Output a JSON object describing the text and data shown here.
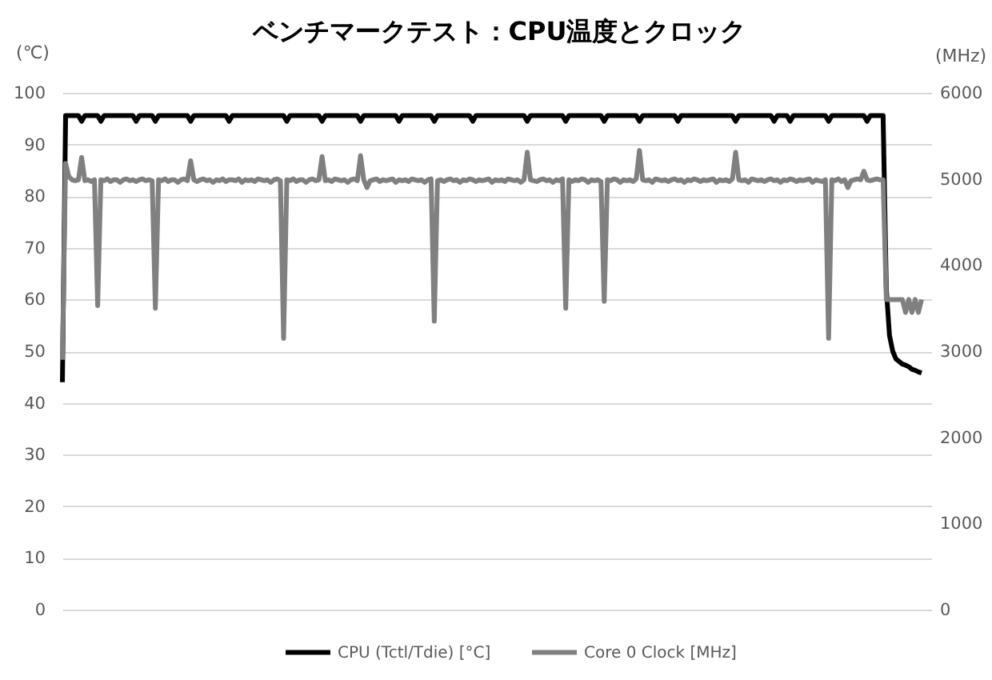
{
  "chart_data": {
    "type": "line",
    "title": "ベンチマークテスト：CPU温度とクロック",
    "ylabel": "(℃)",
    "y2label": "(MHz)",
    "categories": [
      null,
      null,
      null,
      null,
      null,
      null,
      null,
      null,
      null,
      null,
      null,
      null,
      null,
      null,
      null,
      null,
      null,
      null,
      null,
      null,
      null,
      null,
      null,
      null,
      null,
      null,
      null,
      null,
      null,
      null,
      null,
      null,
      null,
      null,
      null,
      null,
      null,
      null,
      null,
      null,
      null,
      null,
      null,
      null,
      null,
      null,
      null,
      null,
      null,
      null,
      null,
      null,
      null,
      null,
      null,
      null,
      null,
      null,
      null,
      null,
      null,
      null,
      null,
      null,
      null,
      null,
      null,
      null,
      null,
      null,
      null,
      null,
      null,
      null,
      null,
      null,
      null,
      null,
      null,
      null,
      null,
      null,
      null,
      null,
      null,
      null,
      null,
      null,
      null,
      null,
      null,
      null,
      null,
      null,
      null,
      null,
      null,
      null,
      null,
      null,
      null,
      null,
      null,
      null,
      null,
      null,
      null,
      null,
      null,
      null,
      null,
      null,
      null,
      null,
      null,
      null,
      null,
      null,
      null,
      null,
      null,
      null,
      null,
      null,
      null,
      null,
      null,
      null,
      null,
      null,
      null,
      null,
      null,
      null,
      null,
      null,
      null,
      null,
      null,
      null,
      null,
      null,
      null,
      null,
      null,
      null,
      null,
      null,
      null,
      null,
      null,
      null,
      null,
      null,
      null,
      null,
      null,
      null,
      null,
      null,
      null,
      null,
      null,
      null,
      null,
      null,
      null,
      null,
      null,
      null,
      null,
      null,
      null,
      null,
      null,
      null,
      null,
      null,
      null,
      null,
      null,
      null,
      null,
      null,
      null,
      null,
      null,
      null,
      null,
      null,
      null,
      null,
      null,
      null,
      null,
      null,
      null,
      null,
      null,
      null,
      null,
      null,
      null,
      null,
      null,
      null,
      null,
      null,
      null,
      null,
      null,
      null,
      null,
      null,
      null,
      null,
      null,
      null,
      null,
      null,
      null,
      null,
      null,
      null,
      null,
      null,
      null,
      null,
      null,
      null,
      null,
      null,
      null,
      null,
      null,
      null,
      null,
      null,
      null,
      null,
      null,
      null,
      null,
      null,
      null,
      null,
      null,
      null,
      null,
      null,
      null,
      null,
      null,
      null,
      null,
      null,
      null,
      null,
      null,
      null,
      null,
      null,
      null,
      null,
      null,
      null,
      null,
      null,
      null,
      null,
      null,
      null
    ],
    "series": [
      {
        "name": "CPU (Tctl/Tdie) [°C]",
        "color": "#000000",
        "values": [
          44,
          95.6,
          95.6,
          95.6,
          95.6,
          95.6,
          94.5,
          95.6,
          95.6,
          95.6,
          95.6,
          95.6,
          94.5,
          95.6,
          95.6,
          95.6,
          95.6,
          95.6,
          95.6,
          95.6,
          95.6,
          95.6,
          95.6,
          94.5,
          95.6,
          95.6,
          95.6,
          95.6,
          95.6,
          94.5,
          95.6,
          95.6,
          95.6,
          95.6,
          95.6,
          95.6,
          95.6,
          95.6,
          95.6,
          95.6,
          94.5,
          95.6,
          95.6,
          95.6,
          95.6,
          95.6,
          95.6,
          95.6,
          95.6,
          95.6,
          95.6,
          95.6,
          94.5,
          95.6,
          95.6,
          95.6,
          95.6,
          95.6,
          95.6,
          95.6,
          95.6,
          95.6,
          95.6,
          95.6,
          95.6,
          95.6,
          95.6,
          95.6,
          95.6,
          95.6,
          94.5,
          95.6,
          95.6,
          95.6,
          95.6,
          95.6,
          95.6,
          95.6,
          95.6,
          95.6,
          95.6,
          94.5,
          95.6,
          95.6,
          95.6,
          95.6,
          95.6,
          95.6,
          95.6,
          95.6,
          95.6,
          95.6,
          95.6,
          94.5,
          95.6,
          95.6,
          95.6,
          95.6,
          95.6,
          95.6,
          95.6,
          95.6,
          95.6,
          95.6,
          95.6,
          94.5,
          95.6,
          95.6,
          95.6,
          95.6,
          95.6,
          95.6,
          95.6,
          95.6,
          95.6,
          95.6,
          94.5,
          95.6,
          95.6,
          95.6,
          95.6,
          95.6,
          95.6,
          95.6,
          95.6,
          95.6,
          95.6,
          95.6,
          94.5,
          95.6,
          95.6,
          95.6,
          95.6,
          95.6,
          95.6,
          95.6,
          95.6,
          95.6,
          95.6,
          95.6,
          95.6,
          95.6,
          95.6,
          95.6,
          95.6,
          94.5,
          95.6,
          95.6,
          95.6,
          95.6,
          95.6,
          95.6,
          95.6,
          95.6,
          95.6,
          95.6,
          95.6,
          94.5,
          95.6,
          95.6,
          95.6,
          95.6,
          95.6,
          95.6,
          95.6,
          95.6,
          95.6,
          95.6,
          95.6,
          94.5,
          95.6,
          95.6,
          95.6,
          95.6,
          95.6,
          95.6,
          95.6,
          95.6,
          95.6,
          95.6,
          94.5,
          95.6,
          95.6,
          95.6,
          95.6,
          95.6,
          95.6,
          95.6,
          95.6,
          95.6,
          95.6,
          95.6,
          94.5,
          95.6,
          95.6,
          95.6,
          95.6,
          95.6,
          95.6,
          95.6,
          95.6,
          95.6,
          95.6,
          95.6,
          95.6,
          95.6,
          95.6,
          95.6,
          95.6,
          95.6,
          94.5,
          95.6,
          95.6,
          95.6,
          95.6,
          95.6,
          95.6,
          95.6,
          95.6,
          95.6,
          95.6,
          95.6,
          94.5,
          95.6,
          95.6,
          95.6,
          95.6,
          94.5,
          95.6,
          95.6,
          95.6,
          95.6,
          95.6,
          95.6,
          95.6,
          95.6,
          95.6,
          95.6,
          95.6,
          94.5,
          95.6,
          95.6,
          95.6,
          95.6,
          95.6,
          95.6,
          95.6,
          95.6,
          95.6,
          95.6,
          95.6,
          94.5,
          95.6,
          95.6,
          95.6,
          95.6,
          95.6,
          62,
          53,
          50,
          48.5,
          48,
          47.5,
          47.3,
          47,
          46.5,
          46.3,
          46,
          45.8,
          null,
          null,
          null
        ]
      },
      {
        "name": "Core 0 Clock [MHz]",
        "color": "#808080",
        "axis": "y2",
        "values": [
          2900,
          5180,
          5030,
          4990,
          4980,
          4990,
          5250,
          4980,
          4990,
          4970,
          4990,
          3530,
          4990,
          4980,
          5000,
          4970,
          4990,
          4990,
          4960,
          4990,
          5000,
          4980,
          4990,
          4970,
          4990,
          5000,
          4980,
          4990,
          4980,
          3500,
          4990,
          4980,
          5000,
          4970,
          4990,
          4990,
          4960,
          4990,
          5000,
          4980,
          5210,
          4990,
          4970,
          4990,
          5000,
          4980,
          4990,
          4960,
          4990,
          4980,
          5000,
          4970,
          4990,
          4990,
          4980,
          5000,
          4960,
          4990,
          4980,
          4990,
          4970,
          5000,
          4990,
          4980,
          4990,
          4960,
          4990,
          5000,
          4980,
          3150,
          4990,
          4980,
          5000,
          4970,
          4990,
          4990,
          4960,
          4990,
          5000,
          4980,
          4990,
          5260,
          4980,
          4990,
          4970,
          5000,
          4990,
          4980,
          4990,
          4960,
          4990,
          5000,
          4980,
          5270,
          4990,
          4900,
          4980,
          4990,
          5000,
          4970,
          4990,
          4980,
          4990,
          5000,
          4960,
          4990,
          4980,
          4990,
          4970,
          5000,
          4990,
          4980,
          4990,
          4960,
          4990,
          5000,
          3350,
          4980,
          4990,
          4970,
          4990,
          5000,
          4980,
          4990,
          4960,
          4990,
          4980,
          5000,
          4990,
          4970,
          4990,
          4980,
          4990,
          5000,
          4960,
          4990,
          4980,
          4990,
          4970,
          5000,
          4990,
          4980,
          4990,
          4960,
          4990,
          5310,
          4990,
          4980,
          4970,
          4990,
          5000,
          4980,
          4990,
          4960,
          4990,
          4980,
          5000,
          3500,
          4990,
          4970,
          4990,
          4980,
          5000,
          4990,
          4960,
          4990,
          4980,
          4990,
          4970,
          3580,
          4990,
          4980,
          5000,
          4990,
          4960,
          4990,
          4980,
          4990,
          4970,
          5000,
          5330,
          4990,
          4980,
          4990,
          4960,
          5000,
          4990,
          4980,
          4990,
          4970,
          4990,
          5000,
          4980,
          4990,
          4960,
          4990,
          4980,
          5000,
          4990,
          4970,
          4990,
          4980,
          4990,
          5000,
          4960,
          4990,
          4980,
          4990,
          4970,
          5000,
          5310,
          4990,
          4980,
          4990,
          4960,
          5000,
          4990,
          4980,
          4990,
          4970,
          4990,
          5000,
          4980,
          4990,
          4960,
          4990,
          4980,
          5000,
          4990,
          4970,
          4990,
          4980,
          4990,
          5000,
          4960,
          4990,
          4980,
          4970,
          4990,
          3150,
          4990,
          4980,
          5000,
          4970,
          4990,
          4900,
          4980,
          4990,
          5000,
          4990,
          5090,
          4990,
          4980,
          4990,
          5000,
          4990,
          4990,
          3600,
          3600,
          3600,
          3600,
          3600,
          3600,
          3450,
          3600,
          3450,
          3600,
          3450,
          3600,
          null,
          null,
          null
        ]
      }
    ],
    "ylim": [
      0,
      100
    ],
    "yticks": [
      0,
      10,
      20,
      30,
      40,
      50,
      60,
      70,
      80,
      90,
      100
    ],
    "y2lim": [
      0,
      6000
    ],
    "y2ticks": [
      0,
      1000,
      2000,
      3000,
      4000,
      5000,
      6000
    ],
    "grid": "y",
    "legend": "bottom",
    "line_style": "solid"
  }
}
